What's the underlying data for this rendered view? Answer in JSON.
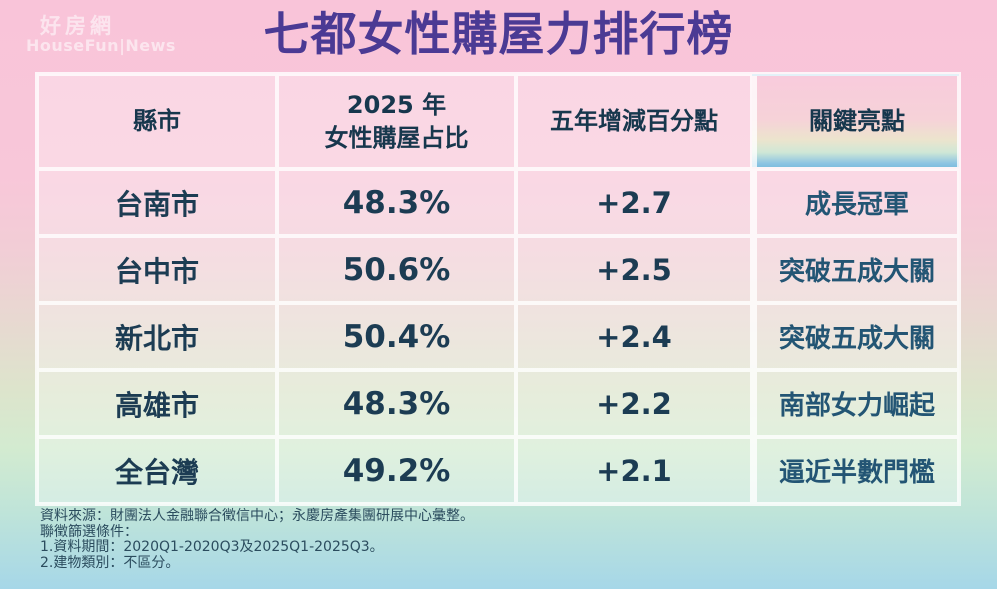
{
  "brand": {
    "name_zh": "好房網",
    "name_en": "HouseFun|News"
  },
  "title": "七都女性購屋力排行榜",
  "table": {
    "columns": [
      {
        "label": "縣市"
      },
      {
        "line1": "2025 年",
        "line2": "女性購屋占比"
      },
      {
        "label": "五年增減百分點"
      },
      {
        "label": "關鍵亮點"
      }
    ],
    "rows": [
      {
        "city": "台南市",
        "share_2025": "48.3%",
        "change_5yr": "+2.7",
        "highlight": "成長冠軍"
      },
      {
        "city": "台中市",
        "share_2025": "50.6%",
        "change_5yr": "+2.5",
        "highlight": "突破五成大關"
      },
      {
        "city": "新北市",
        "share_2025": "50.4%",
        "change_5yr": "+2.4",
        "highlight": "突破五成大關"
      },
      {
        "city": "高雄市",
        "share_2025": "48.3%",
        "change_5yr": "+2.2",
        "highlight": "南部女力崛起"
      },
      {
        "city": "全台灣",
        "share_2025": "49.2%",
        "change_5yr": "+2.1",
        "highlight": "逼近半數門檻"
      }
    ]
  },
  "footnotes": {
    "source": "資料來源：財團法人金融聯合徵信中心；永慶房產集團研展中心彙整。",
    "criteria_title": "聯徵篩選條件：",
    "criteria_1": "1.資料期間：2020Q1-2020Q3及2025Q1-2025Q3。",
    "criteria_2": "2.建物類別：不區分。"
  },
  "colors": {
    "title_text": "#4b3a94",
    "header_text": "#17374d",
    "body_text": "#1c3c53",
    "highlight_text": "#235574",
    "bg_top_pink": "#f9c4d9",
    "bg_bottom_blue": "#a6d7e8",
    "cell_border": "#ffffff"
  },
  "chart_data": {
    "type": "table",
    "title": "七都女性購屋力排行榜",
    "columns": [
      "縣市",
      "2025 年 女性購屋占比",
      "五年增減百分點",
      "關鍵亮點"
    ],
    "rows": [
      [
        "台南市",
        "48.3%",
        "+2.7",
        "成長冠軍"
      ],
      [
        "台中市",
        "50.6%",
        "+2.5",
        "突破五成大關"
      ],
      [
        "新北市",
        "50.4%",
        "+2.4",
        "突破五成大關"
      ],
      [
        "高雄市",
        "48.3%",
        "+2.2",
        "南部女力崛起"
      ],
      [
        "全台灣",
        "49.2%",
        "+2.1",
        "逼近半數門檻"
      ]
    ],
    "values_numeric": {
      "share_2025_pct": [
        48.3,
        50.6,
        50.4,
        48.3,
        49.2
      ],
      "change_5yr_pts": [
        2.7,
        2.5,
        2.4,
        2.2,
        2.1
      ]
    },
    "notes": [
      "資料來源：財團法人金融聯合徵信中心；永慶房產集團研展中心彙整。",
      "聯徵篩選條件：",
      "1.資料期間：2020Q1-2020Q3及2025Q1-2025Q3。",
      "2.建物類別：不區分。"
    ]
  }
}
